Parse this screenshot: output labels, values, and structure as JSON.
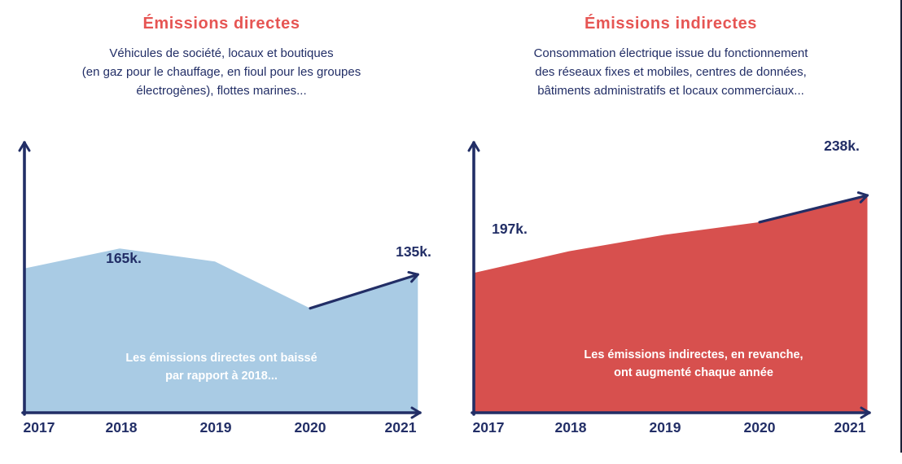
{
  "colors": {
    "title_red": "#e65553",
    "navy": "#222e66",
    "blue_fill": "#a9cbe4",
    "red_fill": "#d7504e",
    "caption_white": "#ffffff"
  },
  "chart_data": [
    {
      "type": "area",
      "title": "Émissions directes",
      "subtitle_lines": [
        "Véhicules de société, locaux et boutiques",
        "(en gaz pour le chauffage, en fioul pour les groupes",
        "électrogènes), flottes marines..."
      ],
      "categories": [
        "2017",
        "2018",
        "2019",
        "2020",
        "2021"
      ],
      "values": [
        145,
        165,
        152,
        105,
        135
      ],
      "unit": "k",
      "ylim": [
        0,
        270
      ],
      "fill": "#a9cbe4",
      "grid": false,
      "legend": false,
      "annotations": [
        {
          "year": "2018",
          "value": 165,
          "text": "165k."
        },
        {
          "year": "2021",
          "value": 135,
          "text": "135k."
        }
      ],
      "caption_lines": [
        "Les émissions directes ont baissé",
        "par rapport à 2018..."
      ]
    },
    {
      "type": "area",
      "title": "Émissions indirectes",
      "subtitle_lines": [
        "Consommation électrique issue du fonctionnement",
        "des réseaux fixes et mobiles, centres de données,",
        "bâtiments administratifs et locaux commerciaux..."
      ],
      "categories": [
        "2017",
        "2018",
        "2019",
        "2020",
        "2021"
      ],
      "values": [
        197,
        209,
        218,
        225,
        238
      ],
      "unit": "k",
      "ylim": [
        120,
        268
      ],
      "fill": "#d7504e",
      "grid": false,
      "legend": false,
      "annotations": [
        {
          "year": "2017",
          "value": 197,
          "text": "197k."
        },
        {
          "year": "2021",
          "value": 238,
          "text": "238k."
        }
      ],
      "caption_lines": [
        "Les émissions indirectes, en revanche,",
        "ont augmenté chaque année"
      ]
    }
  ]
}
